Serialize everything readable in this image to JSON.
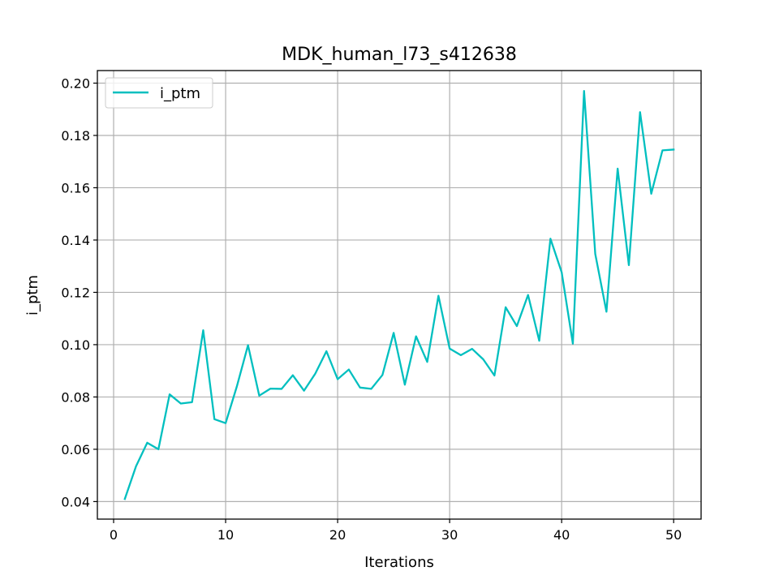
{
  "chart_data": {
    "type": "line",
    "title": "MDK_human_l73_s412638",
    "xlabel": "Iterations",
    "ylabel": "i_ptm",
    "xlim": [
      -1.45,
      52.45
    ],
    "ylim": [
      0.0333,
      0.2048
    ],
    "xticks": [
      0,
      10,
      20,
      30,
      40,
      50
    ],
    "xtick_labels": [
      "0",
      "10",
      "20",
      "30",
      "40",
      "50"
    ],
    "yticks": [
      0.04,
      0.06,
      0.08,
      0.1,
      0.12,
      0.14,
      0.16,
      0.18,
      0.2
    ],
    "ytick_labels": [
      "0.04",
      "0.06",
      "0.08",
      "0.10",
      "0.12",
      "0.14",
      "0.16",
      "0.18",
      "0.20"
    ],
    "grid": true,
    "legend_position": "top-left",
    "series": [
      {
        "name": "i_ptm",
        "color": "#00bfbf",
        "x": [
          1,
          2,
          3,
          4,
          5,
          6,
          7,
          8,
          9,
          10,
          11,
          12,
          13,
          14,
          15,
          16,
          17,
          18,
          19,
          20,
          21,
          22,
          23,
          24,
          25,
          26,
          27,
          28,
          29,
          30,
          31,
          32,
          33,
          34,
          35,
          36,
          37,
          38,
          39,
          40,
          41,
          42,
          43,
          44,
          45,
          46,
          47,
          48,
          49,
          50
        ],
        "y": [
          0.041,
          0.0535,
          0.0625,
          0.06,
          0.081,
          0.0775,
          0.078,
          0.1055,
          0.0715,
          0.07,
          0.084,
          0.0998,
          0.0805,
          0.0832,
          0.0831,
          0.0883,
          0.0824,
          0.0889,
          0.0975,
          0.0868,
          0.0905,
          0.0836,
          0.0831,
          0.0884,
          0.1045,
          0.0847,
          0.1032,
          0.0934,
          0.1187,
          0.0985,
          0.096,
          0.0984,
          0.0944,
          0.0882,
          0.1143,
          0.1071,
          0.119,
          0.1015,
          0.1405,
          0.1277,
          0.1004,
          0.197,
          0.1347,
          0.1126,
          0.1673,
          0.1304,
          0.1889,
          0.1577,
          0.1743,
          0.1746
        ]
      }
    ]
  }
}
